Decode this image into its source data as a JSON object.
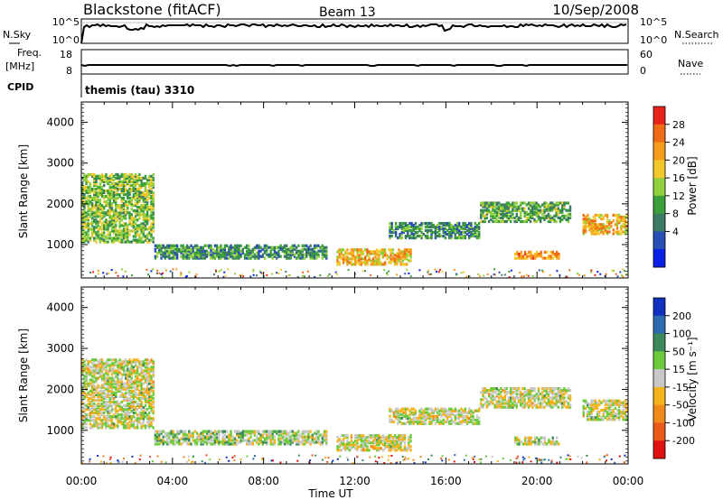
{
  "header": {
    "station": "Blackstone (fitACF)",
    "beam": "Beam 13",
    "date": "10/Sep/2008"
  },
  "top_panels": {
    "nsky": {
      "label": "N.Sky",
      "ticks": [
        "10^5",
        "10^0"
      ],
      "right_label": "N.Search",
      "right_ticks": [
        "10^5",
        "10^0"
      ]
    },
    "freq": {
      "label_line1": "Freq.",
      "label_line2": "[MHz]",
      "ticks": [
        "18",
        "8"
      ],
      "right_label": "Nave",
      "right_ticks": [
        "60",
        "0"
      ]
    },
    "cpid": {
      "label": "CPID",
      "value": "themis (tau) 3310"
    }
  },
  "colors": {
    "power_scale": [
      "#0a20e6",
      "#2a4fb4",
      "#3c7a64",
      "#3aa03a",
      "#8fd03c",
      "#f2c82a",
      "#f59a1a",
      "#ef6b16",
      "#e8231a"
    ],
    "velocity_scale": [
      "#1030c0",
      "#2d6bb0",
      "#3c8a5a",
      "#6ccb3a",
      "#c8c8c8",
      "#f5b21a",
      "#f08a1a",
      "#ec5a1a",
      "#e01010"
    ]
  },
  "chart_data": [
    {
      "type": "heatmap",
      "panel": "power",
      "ylabel": "Slant Range [km]",
      "yticks": [
        1000,
        2000,
        3000,
        4000
      ],
      "ylim": [
        180,
        4500
      ],
      "xticks": [
        "00:00",
        "04:00",
        "08:00",
        "12:00",
        "16:00",
        "20:00",
        "00:00"
      ],
      "xlim_hours": [
        0,
        24
      ],
      "colorbar": {
        "label": "Power [dB]",
        "ticks": [
          "28",
          "24",
          "20",
          "16",
          "12",
          "8",
          "4"
        ],
        "range": [
          0,
          30
        ]
      },
      "echo_regions": [
        {
          "t": [
            0.0,
            3.2
          ],
          "r": [
            1100,
            2800
          ],
          "level": 14
        },
        {
          "t": [
            3.2,
            10.8
          ],
          "r": [
            700,
            1050
          ],
          "level": 10
        },
        {
          "t": [
            11.2,
            14.5
          ],
          "r": [
            550,
            950
          ],
          "level": 20
        },
        {
          "t": [
            13.5,
            17.5
          ],
          "r": [
            1200,
            1600
          ],
          "level": 10
        },
        {
          "t": [
            17.5,
            21.5
          ],
          "r": [
            1600,
            2100
          ],
          "level": 12
        },
        {
          "t": [
            19.0,
            21.0
          ],
          "r": [
            700,
            900
          ],
          "level": 22
        },
        {
          "t": [
            22.0,
            24.0
          ],
          "r": [
            1300,
            1800
          ],
          "level": 20
        }
      ]
    },
    {
      "type": "heatmap",
      "panel": "velocity",
      "ylabel": "Slant Range [km]",
      "yticks": [
        1000,
        2000,
        3000,
        4000
      ],
      "ylim": [
        180,
        4500
      ],
      "xticks": [
        "00:00",
        "04:00",
        "08:00",
        "12:00",
        "16:00",
        "20:00",
        "00:00"
      ],
      "xlim_hours": [
        0,
        24
      ],
      "xlabel": "Time UT",
      "colorbar": {
        "label": "Velocity [m s⁻¹]",
        "ticks": [
          "200",
          "100",
          "50",
          "15",
          "-15",
          "-50",
          "-100",
          "-200"
        ],
        "range": [
          -250,
          250
        ]
      },
      "echo_regions": [
        {
          "t": [
            0.0,
            3.2
          ],
          "r": [
            1100,
            2800
          ],
          "level": 0
        },
        {
          "t": [
            3.2,
            10.8
          ],
          "r": [
            700,
            1050
          ],
          "level": 30
        },
        {
          "t": [
            11.2,
            14.5
          ],
          "r": [
            550,
            950
          ],
          "level": 0
        },
        {
          "t": [
            13.5,
            17.5
          ],
          "r": [
            1200,
            1600
          ],
          "level": 0
        },
        {
          "t": [
            17.5,
            21.5
          ],
          "r": [
            1600,
            2100
          ],
          "level": 0
        },
        {
          "t": [
            19.0,
            21.0
          ],
          "r": [
            700,
            900
          ],
          "level": 0
        },
        {
          "t": [
            22.0,
            24.0
          ],
          "r": [
            1300,
            1800
          ],
          "level": 0
        }
      ]
    }
  ]
}
